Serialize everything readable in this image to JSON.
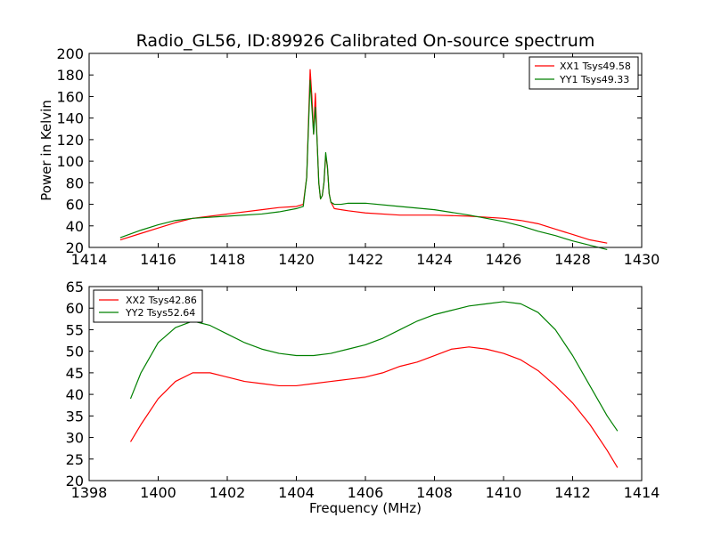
{
  "figure": {
    "title": "Radio_GL56, ID:89926 Calibrated On-source spectrum"
  },
  "chart_data": [
    {
      "type": "line",
      "title": "Radio_GL56, ID:89926 Calibrated On-source spectrum",
      "xlabel": "",
      "ylabel": "Power in Kelvin",
      "xlim": [
        1414,
        1430
      ],
      "ylim": [
        20,
        200
      ],
      "xticks": [
        1414,
        1416,
        1418,
        1420,
        1422,
        1424,
        1426,
        1428,
        1430
      ],
      "yticks": [
        20,
        40,
        60,
        80,
        100,
        120,
        140,
        160,
        180,
        200
      ],
      "grid": false,
      "legend_position": "top-right",
      "series": [
        {
          "name": "XX1 Tsys49.58",
          "color": "#ff0000",
          "x": [
            1414.9,
            1415.5,
            1416.0,
            1416.5,
            1417.0,
            1418.0,
            1419.0,
            1419.5,
            1420.0,
            1420.2,
            1420.3,
            1420.4,
            1420.45,
            1420.5,
            1420.55,
            1420.6,
            1420.65,
            1420.7,
            1420.75,
            1420.8,
            1420.85,
            1420.9,
            1420.95,
            1421.0,
            1421.1,
            1421.3,
            1421.5,
            1422.0,
            1423.0,
            1424.0,
            1425.0,
            1426.0,
            1426.5,
            1427.0,
            1427.5,
            1428.0,
            1428.5,
            1429.0
          ],
          "y": [
            27,
            33,
            38,
            43,
            47,
            51,
            55,
            57,
            58,
            60,
            85,
            185,
            160,
            125,
            163,
            120,
            80,
            65,
            68,
            80,
            105,
            95,
            70,
            62,
            56,
            55,
            54,
            52,
            50,
            50,
            49,
            47,
            45,
            42,
            37,
            32,
            27,
            24
          ]
        },
        {
          "name": "YY1 Tsys49.33",
          "color": "#008000",
          "x": [
            1414.9,
            1415.5,
            1416.0,
            1416.5,
            1417.0,
            1418.0,
            1419.0,
            1419.5,
            1420.0,
            1420.2,
            1420.3,
            1420.4,
            1420.45,
            1420.5,
            1420.55,
            1420.6,
            1420.65,
            1420.7,
            1420.75,
            1420.8,
            1420.85,
            1420.9,
            1420.95,
            1421.0,
            1421.1,
            1421.3,
            1421.5,
            1422.0,
            1423.0,
            1424.0,
            1425.0,
            1426.0,
            1426.5,
            1427.0,
            1427.5,
            1428.0,
            1428.5,
            1429.0
          ],
          "y": [
            29,
            36,
            41,
            45,
            47,
            49,
            51,
            53,
            56,
            58,
            85,
            175,
            150,
            125,
            150,
            120,
            80,
            65,
            68,
            80,
            108,
            95,
            70,
            62,
            60,
            60,
            61,
            61,
            58,
            55,
            50,
            44,
            40,
            35,
            31,
            26,
            22,
            18
          ]
        }
      ]
    },
    {
      "type": "line",
      "title": "",
      "xlabel": "Frequency (MHz)",
      "ylabel": "",
      "xlim": [
        1398,
        1414
      ],
      "ylim": [
        20,
        65
      ],
      "xticks": [
        1398,
        1400,
        1402,
        1404,
        1406,
        1408,
        1410,
        1412,
        1414
      ],
      "yticks": [
        20,
        25,
        30,
        35,
        40,
        45,
        50,
        55,
        60,
        65
      ],
      "grid": false,
      "legend_position": "top-left",
      "series": [
        {
          "name": "XX2 Tsys42.86",
          "color": "#ff0000",
          "x": [
            1399.2,
            1399.5,
            1400.0,
            1400.5,
            1401.0,
            1401.5,
            1402.0,
            1402.5,
            1403.0,
            1403.5,
            1404.0,
            1404.5,
            1405.0,
            1405.5,
            1406.0,
            1406.5,
            1407.0,
            1407.5,
            1408.0,
            1408.5,
            1409.0,
            1409.5,
            1410.0,
            1410.5,
            1411.0,
            1411.5,
            1412.0,
            1412.5,
            1413.0,
            1413.3
          ],
          "y": [
            29,
            33,
            39,
            43,
            45,
            45,
            44,
            43,
            42.5,
            42,
            42,
            42.5,
            43,
            43.5,
            44,
            45,
            46.5,
            47.5,
            49,
            50.5,
            51,
            50.5,
            49.5,
            48,
            45.5,
            42,
            38,
            33,
            27,
            23
          ]
        },
        {
          "name": "YY2 Tsys52.64",
          "color": "#008000",
          "x": [
            1399.2,
            1399.5,
            1400.0,
            1400.5,
            1401.0,
            1401.5,
            1402.0,
            1402.5,
            1403.0,
            1403.5,
            1404.0,
            1404.5,
            1405.0,
            1405.5,
            1406.0,
            1406.5,
            1407.0,
            1407.5,
            1408.0,
            1408.5,
            1409.0,
            1409.5,
            1410.0,
            1410.5,
            1411.0,
            1411.5,
            1412.0,
            1412.5,
            1413.0,
            1413.3
          ],
          "y": [
            39,
            45,
            52,
            55.5,
            57,
            56,
            54,
            52,
            50.5,
            49.5,
            49,
            49,
            49.5,
            50.5,
            51.5,
            53,
            55,
            57,
            58.5,
            59.5,
            60.5,
            61,
            61.5,
            61,
            59,
            55,
            49,
            42,
            35,
            31.5
          ]
        }
      ]
    }
  ]
}
